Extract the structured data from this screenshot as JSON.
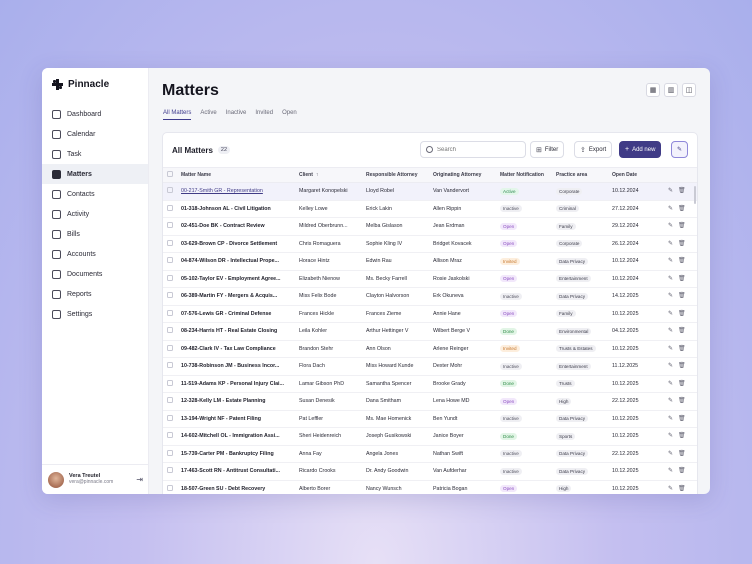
{
  "app": {
    "name": "Pinnacle"
  },
  "sidebar": {
    "items": [
      {
        "label": "Dashboard",
        "icon": "dashboard-icon"
      },
      {
        "label": "Calendar",
        "icon": "calendar-icon"
      },
      {
        "label": "Task",
        "icon": "task-icon"
      },
      {
        "label": "Matters",
        "icon": "matters-icon",
        "active": true
      },
      {
        "label": "Contacts",
        "icon": "contacts-icon"
      },
      {
        "label": "Activity",
        "icon": "activity-icon"
      },
      {
        "label": "Bills",
        "icon": "bills-icon"
      },
      {
        "label": "Accounts",
        "icon": "accounts-icon"
      },
      {
        "label": "Documents",
        "icon": "documents-icon"
      },
      {
        "label": "Reports",
        "icon": "reports-icon"
      },
      {
        "label": "Settings",
        "icon": "settings-icon"
      }
    ]
  },
  "user": {
    "name": "Vera Treutel",
    "email": "vera@pinnacle.com"
  },
  "page": {
    "title": "Matters",
    "tabs": [
      "All Matters",
      "Active",
      "Inactive",
      "Invited",
      "Open"
    ],
    "active_tab": "All Matters"
  },
  "table_card": {
    "title": "All Matters",
    "count": "22",
    "search_placeholder": "Search",
    "filter_label": "Filter",
    "export_label": "Export",
    "add_label": "Add new",
    "columns": [
      "Matter Name",
      "Client",
      "Responsible Attorney",
      "Originating Attorney",
      "Matter Notification",
      "Practice area",
      "Open Date"
    ],
    "rows": [
      [
        "00-217-Smith GR - Representation",
        "Margaret Konopelski",
        "Lloyd Robel",
        "Van Vandervort",
        "Active",
        "Corporate",
        "10.12.2024"
      ],
      [
        "01-318-Johnson AL - Civil Litigation",
        "Kelley Lowe",
        "Erick Lakin",
        "Allen Rippin",
        "Inactive",
        "Criminal",
        "27.12.2024"
      ],
      [
        "02-451-Doe BK - Contract Review",
        "Mildred Oberbrunn...",
        "Melba Gislason",
        "Jean Erdman",
        "Open",
        "Family",
        "29.12.2024"
      ],
      [
        "03-629-Brown CP - Divorce Settlement",
        "Chris Romaguera",
        "Sophie Kling IV",
        "Bridget Kovacek",
        "Open",
        "Corporate",
        "26.12.2024"
      ],
      [
        "04-874-Wilson DR - Intellectual Prope...",
        "Horace Hintz",
        "Edwin Rau",
        "Allison Mraz",
        "Invited",
        "Data Privacy",
        "10.12.2024"
      ],
      [
        "05-102-Taylor EV - Employment Agree...",
        "Elizabeth Nienow",
        "Ms. Becky Farrell",
        "Rosie Jaskolski",
        "Open",
        "Entertainment",
        "10.12.2024"
      ],
      [
        "06-389-Martin FY - Mergers & Acquis...",
        "Miss Felix Bode",
        "Clayton Halvorson",
        "Erk Okuneva",
        "Inactive",
        "Data Privacy",
        "14.12.2025"
      ],
      [
        "07-576-Lewis GR - Criminal Defense",
        "Frances Hickle",
        "Frances Zieme",
        "Annie Hane",
        "Open",
        "Family",
        "10.12.2025"
      ],
      [
        "08-234-Harris HT - Real Estate Closing",
        "Leila Kohler",
        "Arthur Hettinger V",
        "Wilbert Berge V",
        "Done",
        "Environmental",
        "04.12.2025"
      ],
      [
        "09-482-Clark IV - Tax Law Compliance",
        "Brandon Stehr",
        "Ann Olson",
        "Arlene Reinger",
        "Invited",
        "Trusts & Estates",
        "10.12.2025"
      ],
      [
        "10-738-Robinson JM - Business Incor...",
        "Flora Dach",
        "Miss Howard Kunde",
        "Dexter Mohr",
        "Inactive",
        "Entertainment",
        "11.12.2025"
      ],
      [
        "11-519-Adams KP - Personal Injury Clai...",
        "Lamar Gibson PhD",
        "Samantha Spencer",
        "Brooke Grady",
        "Done",
        "Trusts",
        "10.12.2025"
      ],
      [
        "12-328-Kelly LM - Estate Planning",
        "Susan Denesik",
        "Dana Smitham",
        "Lena Howe MD",
        "Open",
        "High",
        "22.12.2025"
      ],
      [
        "13-194-Wright NF - Patent Filing",
        "Pat Leffler",
        "Ms. Mae Homenick",
        "Ben Yundt",
        "Inactive",
        "Data Privacy",
        "10.12.2025"
      ],
      [
        "14-602-Mitchell OL - Immigration Assi...",
        "Sheri Heidenreich",
        "Joseph Gusikowski",
        "Janice Boyer",
        "Done",
        "Sports",
        "10.12.2025"
      ],
      [
        "15-739-Carter PM - Bankruptcy Filing",
        "Anna Fay",
        "Angela Jones",
        "Nathan Swift",
        "Inactive",
        "Data Privacy",
        "22.12.2025"
      ],
      [
        "17-463-Scott RN - Antitrust Consultati...",
        "Ricardo Crooks",
        "Dr. Andy Goodwin",
        "Van Aufderhar",
        "Inactive",
        "Data Privacy",
        "10.12.2025"
      ],
      [
        "18-507-Green SU - Debt Recovery",
        "Alberto Borer",
        "Nancy Wunsch",
        "Patricia Bogan",
        "Open",
        "High",
        "10.12.2025"
      ]
    ]
  },
  "colors": {
    "accent": "#403b86",
    "active_badge": "#2c8a4f",
    "open_badge": "#8a4cc0",
    "invited_badge": "#c5762a"
  }
}
